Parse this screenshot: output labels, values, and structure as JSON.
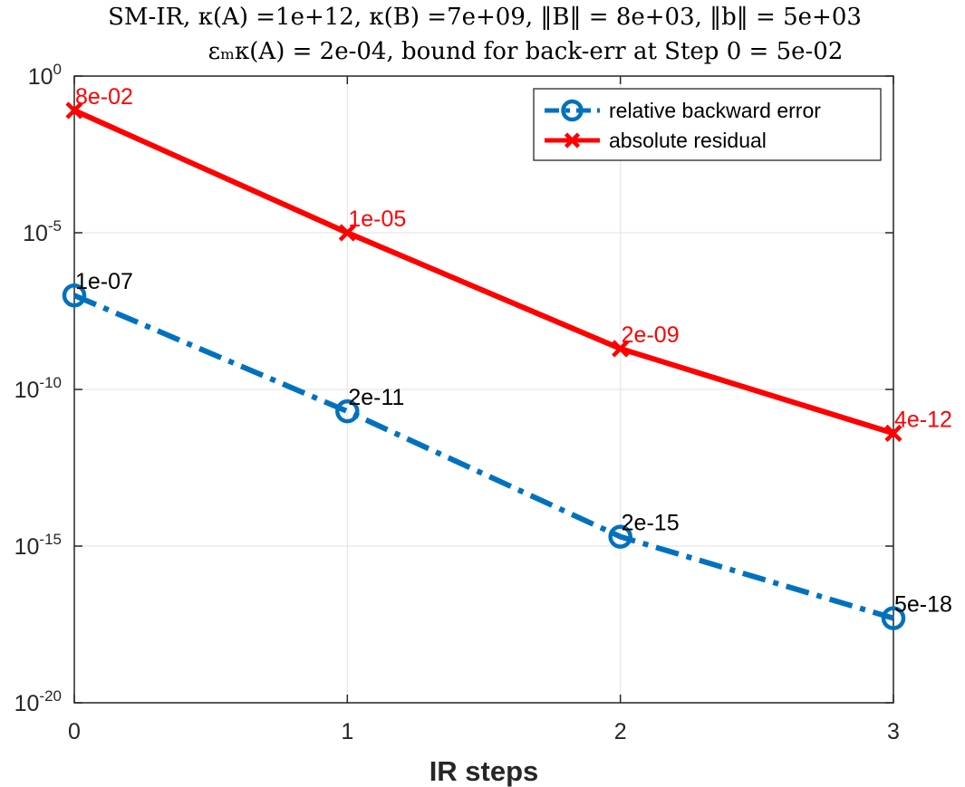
{
  "chart_data": {
    "type": "line",
    "title_lines": [
      "SM-IR, κ(A) =1e+12, κ(B) =7e+09, ‖B‖ = 8e+03, ‖b‖ = 5e+03",
      "εₘκ(A) = 2e-04, bound for back-err at Step 0 = 5e-02"
    ],
    "xlabel": "IR steps",
    "ylabel": "",
    "x": [
      0,
      1,
      2,
      3
    ],
    "xlim": [
      0,
      3
    ],
    "ylim": [
      1e-20,
      1
    ],
    "yscale": "log",
    "grid": true,
    "legend_position": "top-right",
    "x_ticks": [
      "0",
      "1",
      "2",
      "3"
    ],
    "y_ticks": [
      {
        "base": "10",
        "exp": "0",
        "value": 1
      },
      {
        "base": "10",
        "exp": "-5",
        "value": 1e-05
      },
      {
        "base": "10",
        "exp": "-10",
        "value": 1e-10
      },
      {
        "base": "10",
        "exp": "-15",
        "value": 1e-15
      },
      {
        "base": "10",
        "exp": "-20",
        "value": 1e-20
      }
    ],
    "series": [
      {
        "name": "relative backward error",
        "color": "#0072bd",
        "line_style": "dash-dot",
        "marker": "circle",
        "values": [
          1e-07,
          2e-11,
          2e-15,
          5e-18
        ],
        "labels": [
          "1e-07",
          "2e-11",
          "2e-15",
          "5e-18"
        ],
        "label_color": "#000000"
      },
      {
        "name": "absolute residual",
        "color": "#ff0000",
        "line_style": "solid",
        "marker": "x",
        "values": [
          0.08,
          1e-05,
          2e-09,
          4e-12
        ],
        "labels": [
          "8e-02",
          "1e-05",
          "2e-09",
          "4e-12"
        ],
        "label_color": "#ff0000"
      }
    ]
  }
}
